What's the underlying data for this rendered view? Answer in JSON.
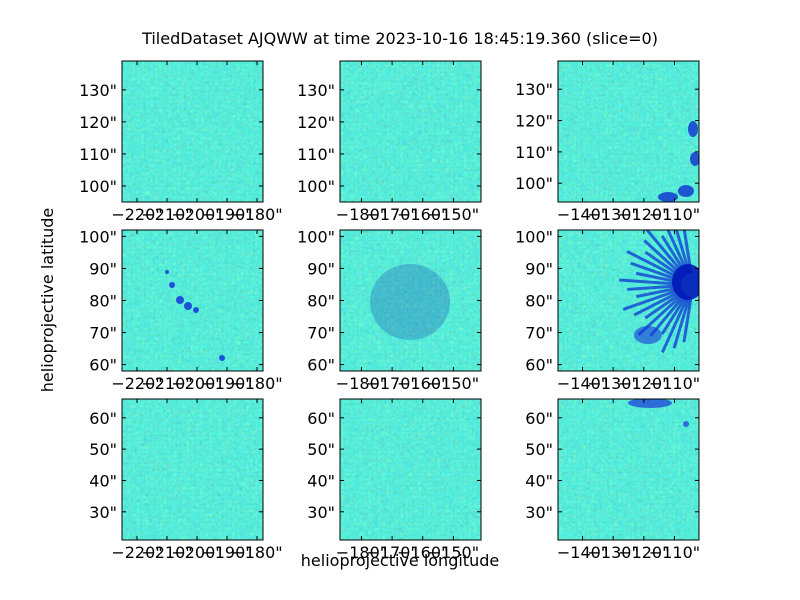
{
  "figure": {
    "title": "TiledDataset AJQWW at time 2023-10-16 18:45:19.360 (slice=0)",
    "xlabel": "helioprojective longitude",
    "ylabel": "helioprojective latitude",
    "colormap": "jet"
  },
  "chart_data": [
    {
      "type": "heatmap",
      "row": 0,
      "col": 0,
      "xlim": [
        -225,
        -178
      ],
      "ylim": [
        95,
        139
      ],
      "xticks": [
        "-220\"",
        "-210\"",
        "-200\"",
        "-190\"",
        "-180\""
      ],
      "yticks": [
        "100\"",
        "110\"",
        "120\"",
        "130\""
      ],
      "features": []
    },
    {
      "type": "heatmap",
      "row": 0,
      "col": 1,
      "xlim": [
        -187,
        -141
      ],
      "ylim": [
        95,
        139
      ],
      "xticks": [
        "-180\"",
        "-170\"",
        "-160\"",
        "-150\""
      ],
      "yticks": [
        "100\"",
        "110\"",
        "120\"",
        "130\""
      ],
      "features": []
    },
    {
      "type": "heatmap",
      "row": 0,
      "col": 2,
      "xlim": [
        -148,
        -102
      ],
      "ylim": [
        94,
        139
      ],
      "xticks": [
        "-140\"",
        "-130\"",
        "-120\"",
        "-110\""
      ],
      "yticks": [
        "100\"",
        "110\"",
        "120\"",
        "130\""
      ],
      "features": [
        "dark-spots-right-edge"
      ]
    },
    {
      "type": "heatmap",
      "row": 1,
      "col": 0,
      "xlim": [
        -225,
        -178
      ],
      "ylim": [
        58,
        102
      ],
      "xticks": [
        "-220\"",
        "-210\"",
        "-200\"",
        "-190\"",
        "-180\""
      ],
      "yticks": [
        "60\"",
        "70\"",
        "80\"",
        "90\"",
        "100\""
      ],
      "features": [
        "pores-center"
      ]
    },
    {
      "type": "heatmap",
      "row": 1,
      "col": 1,
      "xlim": [
        -187,
        -141
      ],
      "ylim": [
        58,
        102
      ],
      "xticks": [
        "-180\"",
        "-170\"",
        "-160\"",
        "-150\""
      ],
      "yticks": [
        "60\"",
        "70\"",
        "80\"",
        "90\"",
        "100\""
      ],
      "features": [
        "mottled-center"
      ]
    },
    {
      "type": "heatmap",
      "row": 1,
      "col": 2,
      "xlim": [
        -148,
        -102
      ],
      "ylim": [
        58,
        102
      ],
      "xticks": [
        "-140\"",
        "-130\"",
        "-120\"",
        "-110\""
      ],
      "yticks": [
        "60\"",
        "70\"",
        "80\"",
        "90\"",
        "100\""
      ],
      "features": [
        "sunspot-penumbra-right"
      ]
    },
    {
      "type": "heatmap",
      "row": 2,
      "col": 0,
      "xlim": [
        -225,
        -178
      ],
      "ylim": [
        21,
        66
      ],
      "xticks": [
        "-220\"",
        "-210\"",
        "-200\"",
        "-190\"",
        "-180\""
      ],
      "yticks": [
        "30\"",
        "40\"",
        "50\"",
        "60\""
      ],
      "features": []
    },
    {
      "type": "heatmap",
      "row": 2,
      "col": 1,
      "xlim": [
        -187,
        -141
      ],
      "ylim": [
        21,
        66
      ],
      "xticks": [
        "-180\"",
        "-170\"",
        "-160\"",
        "-150\""
      ],
      "yticks": [
        "30\"",
        "40\"",
        "50\"",
        "60\""
      ],
      "features": []
    },
    {
      "type": "heatmap",
      "row": 2,
      "col": 2,
      "xlim": [
        -148,
        -102
      ],
      "ylim": [
        21,
        66
      ],
      "xticks": [
        "-140\"",
        "-130\"",
        "-120\"",
        "-110\""
      ],
      "yticks": [
        "30\"",
        "40\"",
        "50\"",
        "60\""
      ],
      "features": [
        "dark-spots-top"
      ]
    }
  ]
}
